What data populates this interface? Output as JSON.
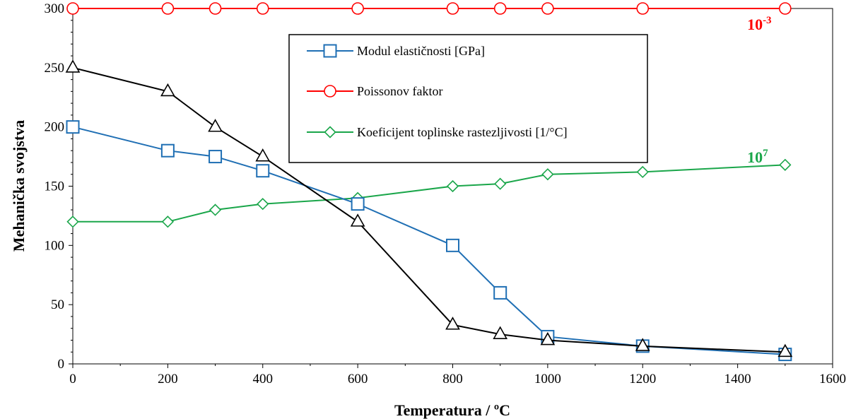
{
  "chart_data": {
    "type": "line",
    "title": "",
    "xlabel": "Temperatura / ºC",
    "ylabel": "Mehanička svojstva",
    "xlim": [
      0,
      1600
    ],
    "ylim": [
      0,
      300
    ],
    "xticks": [
      0,
      200,
      400,
      600,
      800,
      1000,
      1200,
      1400,
      1600
    ],
    "yticks": [
      0,
      50,
      100,
      150,
      200,
      250,
      300
    ],
    "grid": false,
    "legend_position": "top-center",
    "series": [
      {
        "name": "Modul elastičnosti [GPa]",
        "color": "#1f6fb4",
        "marker": "square",
        "x": [
          0,
          200,
          300,
          400,
          600,
          800,
          900,
          1000,
          1200,
          1500
        ],
        "y": [
          200,
          180,
          175,
          163,
          135,
          100,
          60,
          23,
          15,
          8
        ]
      },
      {
        "name": "Poissonov faktor",
        "color": "#ff0000",
        "marker": "circle",
        "x": [
          0,
          200,
          300,
          400,
          600,
          800,
          900,
          1000,
          1200,
          1500
        ],
        "y": [
          300,
          300,
          300,
          300,
          300,
          300,
          300,
          300,
          300,
          300
        ]
      },
      {
        "name": "Koeficijent toplinske rastezljivosti [1/°C]",
        "color": "#1aa64a",
        "marker": "diamond",
        "x": [
          0,
          200,
          300,
          400,
          600,
          800,
          900,
          1000,
          1200,
          1500
        ],
        "y": [
          120,
          120,
          130,
          135,
          140,
          150,
          152,
          160,
          162,
          168
        ]
      },
      {
        "color": "#000000",
        "marker": "triangle",
        "x": [
          0,
          200,
          300,
          400,
          600,
          800,
          900,
          1000,
          1200,
          1500
        ],
        "y": [
          250,
          230,
          200,
          175,
          120,
          33,
          25,
          20,
          15,
          10
        ]
      }
    ],
    "annotations": [
      {
        "base": "10",
        "exponent": "-3",
        "color": "#ff0000",
        "x": 1420,
        "y": 282
      },
      {
        "base": "10",
        "exponent": "7",
        "color": "#1aa64a",
        "x": 1420,
        "y": 170
      }
    ]
  }
}
